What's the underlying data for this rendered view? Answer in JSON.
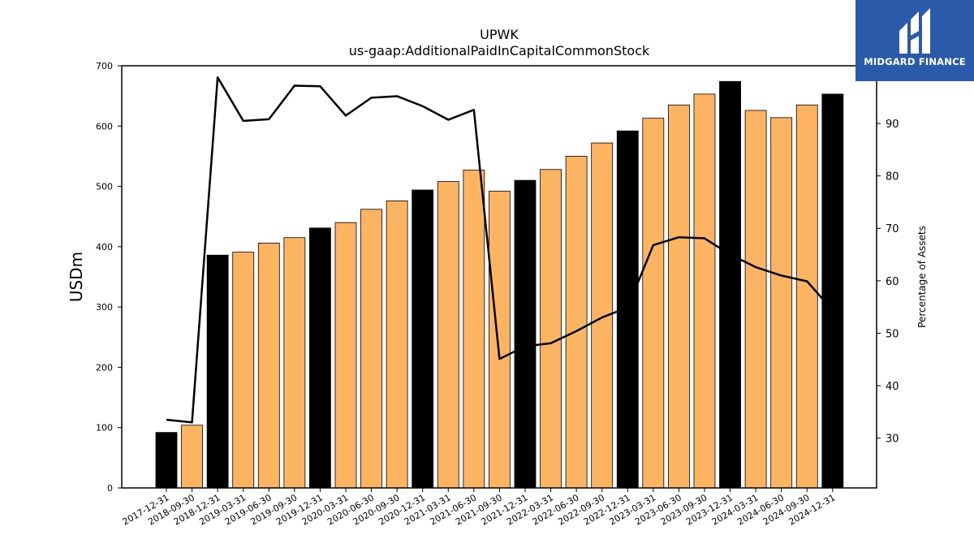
{
  "chart_data": {
    "type": "bar",
    "title": "UPWK",
    "subtitle": "us-gaap:AdditionalPaidInCapitalCommonStock",
    "ylabel": "USDm",
    "y2label": "Percentage of Assets",
    "ylim": [
      0,
      700
    ],
    "y2lim": [
      20.5,
      101
    ],
    "yticks": [
      0,
      100,
      200,
      300,
      400,
      500,
      600,
      700
    ],
    "y2ticks": [
      30,
      40,
      50,
      60,
      70,
      80,
      90
    ],
    "categories": [
      "2017-12-31",
      "2018-09-30",
      "2018-12-31",
      "2019-03-31",
      "2019-06-30",
      "2019-09-30",
      "2019-12-31",
      "2020-03-31",
      "2020-06-30",
      "2020-09-30",
      "2020-12-31",
      "2021-03-31",
      "2021-06-30",
      "2021-09-30",
      "2021-12-31",
      "2022-03-31",
      "2022-06-30",
      "2022-09-30",
      "2022-12-31",
      "2023-03-31",
      "2023-06-30",
      "2023-09-30",
      "2023-12-31",
      "2024-03-31",
      "2024-06-30",
      "2024-09-30",
      "2024-12-31"
    ],
    "series": [
      {
        "kind": "bar",
        "values": [
          92,
          104,
          386,
          391,
          406,
          415,
          431,
          440,
          462,
          476,
          494,
          508,
          527,
          492,
          510,
          528,
          550,
          572,
          592,
          613,
          635,
          653,
          674,
          626,
          614,
          635,
          653
        ],
        "colors": [
          "#000000",
          "#fdb462",
          "#000000",
          "#fdb462",
          "#fdb462",
          "#fdb462",
          "#000000",
          "#fdb462",
          "#fdb462",
          "#fdb462",
          "#000000",
          "#fdb462",
          "#fdb462",
          "#fdb462",
          "#000000",
          "#fdb462",
          "#fdb462",
          "#fdb462",
          "#000000",
          "#fdb462",
          "#fdb462",
          "#fdb462",
          "#000000",
          "#fdb462",
          "#fdb462",
          "#fdb462",
          "#000000"
        ]
      },
      {
        "kind": "line",
        "axis": "right",
        "values": [
          33.5,
          33.0,
          98.8,
          90.5,
          90.8,
          97.2,
          97.1,
          91.5,
          94.9,
          95.2,
          93.3,
          90.7,
          92.6,
          45.1,
          47.5,
          48.1,
          50.4,
          53.0,
          54.9,
          66.8,
          68.3,
          68.1,
          65.0,
          62.6,
          61.0,
          59.9,
          54.4
        ],
        "color": "#000000"
      }
    ],
    "grid": false
  },
  "logo": {
    "text": "MIDGARD FINANCE",
    "background": "#2b5aaa"
  }
}
